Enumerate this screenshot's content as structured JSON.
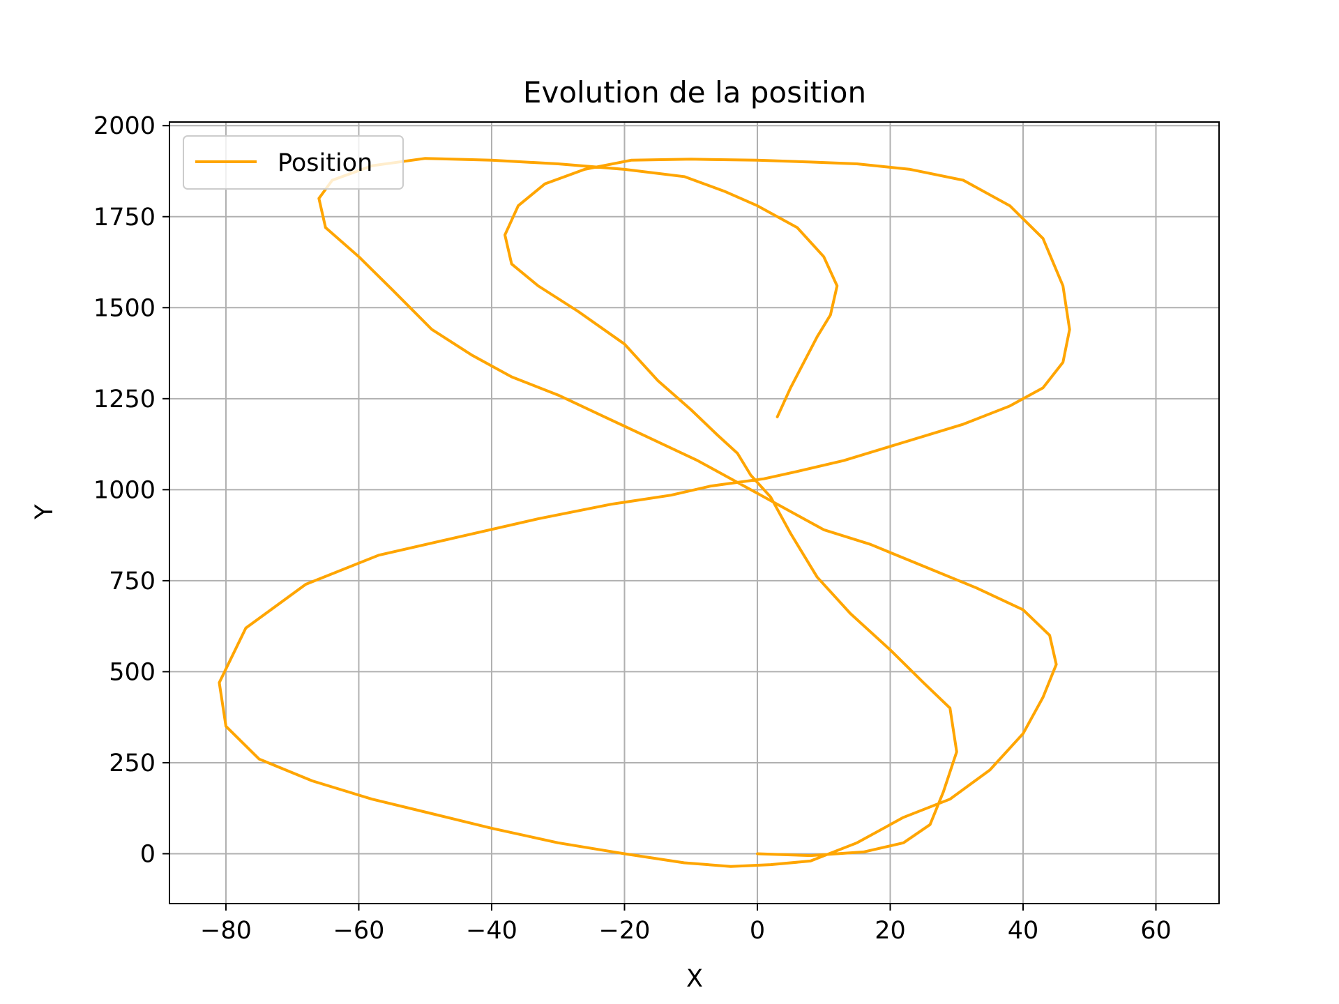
{
  "chart_data": {
    "type": "line",
    "title": "Evolution de la position",
    "xlabel": "X",
    "ylabel": "Y",
    "xlim": [
      -88.5,
      69.5
    ],
    "ylim": [
      -137,
      2010
    ],
    "xticks": [
      -80,
      -60,
      -40,
      -20,
      0,
      20,
      40,
      60
    ],
    "yticks": [
      0,
      250,
      500,
      750,
      1000,
      1250,
      1500,
      1750,
      2000
    ],
    "grid": true,
    "legend_position": "upper-left",
    "color": "#ffa500",
    "series": [
      {
        "name": "Position",
        "x": [
          0,
          8,
          16,
          22,
          26,
          28,
          30,
          29,
          25,
          20,
          14,
          9,
          5,
          2,
          -1,
          -3,
          -6,
          -10,
          -15,
          -20,
          -27,
          -33,
          -37,
          -38,
          -36,
          -32,
          -26,
          -19,
          -10,
          0,
          8,
          15,
          23,
          31,
          38,
          43,
          46,
          47,
          46,
          43,
          38,
          31,
          22,
          13,
          6,
          1,
          -3,
          -7,
          -13,
          -22,
          -33,
          -45,
          -57,
          -68,
          -77,
          -81,
          -80,
          -75,
          -67,
          -58,
          -49,
          -40,
          -30,
          -20,
          -11,
          -4,
          2,
          8,
          15,
          22,
          29,
          35,
          40,
          43,
          45,
          44,
          40,
          33,
          25,
          17,
          10,
          6,
          1,
          -3,
          -9,
          -16,
          -23,
          -30,
          -37,
          -43,
          -49,
          -55,
          -60,
          -65,
          -66,
          -64,
          -58,
          -50,
          -40,
          -30,
          -20,
          -11,
          -5,
          0,
          6,
          10,
          12,
          11,
          9,
          7,
          5,
          3
        ],
        "y": [
          0,
          -5,
          5,
          30,
          80,
          170,
          280,
          400,
          470,
          560,
          660,
          760,
          880,
          980,
          1040,
          1100,
          1150,
          1220,
          1300,
          1400,
          1490,
          1560,
          1620,
          1700,
          1780,
          1840,
          1880,
          1905,
          1908,
          1905,
          1900,
          1895,
          1880,
          1850,
          1780,
          1690,
          1560,
          1440,
          1350,
          1280,
          1230,
          1180,
          1130,
          1080,
          1050,
          1030,
          1020,
          1010,
          985,
          960,
          920,
          870,
          820,
          740,
          620,
          470,
          350,
          260,
          200,
          150,
          110,
          70,
          30,
          0,
          -25,
          -35,
          -30,
          -20,
          30,
          100,
          150,
          230,
          330,
          430,
          520,
          600,
          670,
          730,
          790,
          850,
          890,
          930,
          980,
          1020,
          1080,
          1140,
          1200,
          1260,
          1310,
          1370,
          1440,
          1550,
          1640,
          1720,
          1800,
          1850,
          1890,
          1910,
          1905,
          1895,
          1880,
          1860,
          1820,
          1780,
          1720,
          1640,
          1560,
          1480,
          1420,
          1350,
          1280,
          1200
        ]
      }
    ]
  }
}
